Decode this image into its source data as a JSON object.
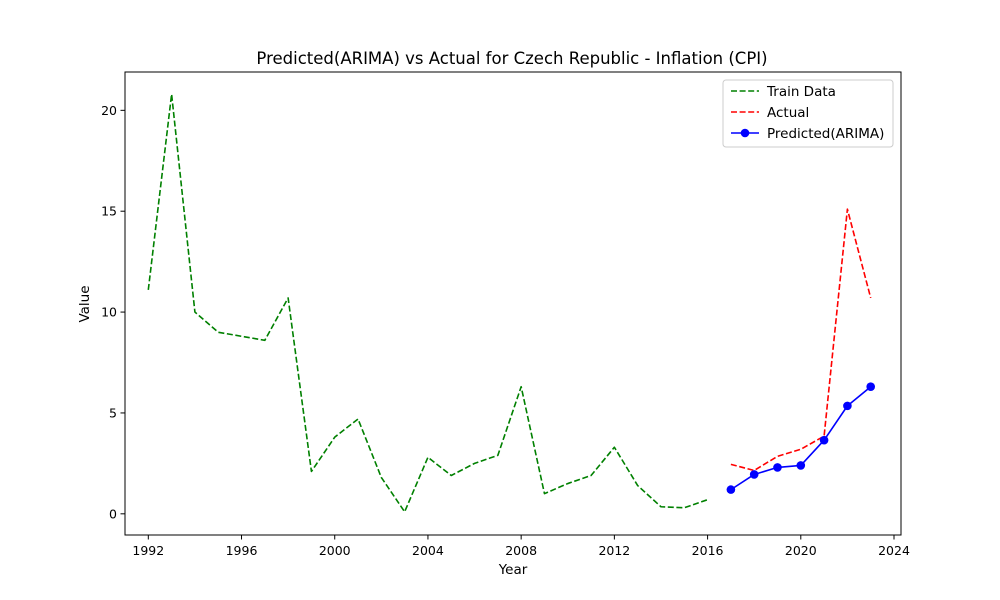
{
  "chart_data": {
    "type": "line",
    "title": "Predicted(ARIMA) vs Actual for Czech Republic - Inflation (CPI)",
    "xlabel": "Year",
    "ylabel": "Value",
    "xlim": [
      1991,
      2024.3
    ],
    "ylim": [
      -1.05,
      21.9
    ],
    "xticks": [
      1992,
      1996,
      2000,
      2004,
      2008,
      2012,
      2016,
      2020,
      2024
    ],
    "yticks": [
      0,
      5,
      10,
      15,
      20
    ],
    "grid": false,
    "legend_position": "top-right",
    "series": [
      {
        "name": "Train Data",
        "color": "#008000",
        "style": "dashed",
        "marker": "none",
        "x": [
          1992,
          1993,
          1994,
          1995,
          1996,
          1997,
          1998,
          1999,
          2000,
          2001,
          2002,
          2003,
          2004,
          2005,
          2006,
          2007,
          2008,
          2009,
          2010,
          2011,
          2012,
          2013,
          2014,
          2015,
          2016
        ],
        "y": [
          11.1,
          20.8,
          10.0,
          9.0,
          8.8,
          8.6,
          10.7,
          2.1,
          3.8,
          4.7,
          1.8,
          0.1,
          2.8,
          1.9,
          2.5,
          2.9,
          6.3,
          1.0,
          1.5,
          1.9,
          3.3,
          1.4,
          0.35,
          0.3,
          0.7
        ]
      },
      {
        "name": "Actual",
        "color": "#ff0000",
        "style": "dashed",
        "marker": "none",
        "x": [
          2017,
          2018,
          2019,
          2020,
          2021,
          2022,
          2023
        ],
        "y": [
          2.45,
          2.15,
          2.85,
          3.2,
          3.85,
          15.1,
          10.7
        ]
      },
      {
        "name": "Predicted(ARIMA)",
        "color": "#0000ff",
        "style": "solid",
        "marker": "circle",
        "x": [
          2017,
          2018,
          2019,
          2020,
          2021,
          2022,
          2023
        ],
        "y": [
          1.2,
          1.95,
          2.3,
          2.4,
          3.65,
          5.35,
          6.3
        ]
      }
    ]
  }
}
